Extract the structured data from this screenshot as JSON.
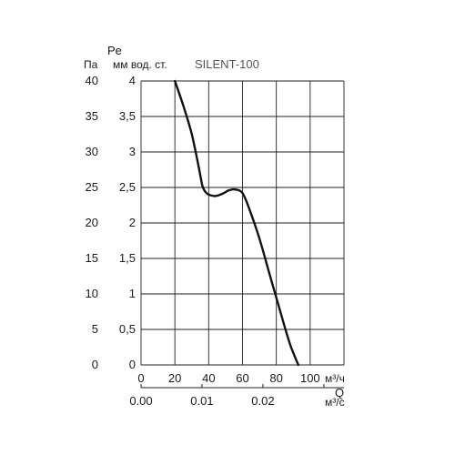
{
  "chart_data": {
    "type": "line",
    "title": "SILENT-100",
    "y_symbol": "Pe",
    "y_unit_pa": "Па",
    "y_unit_mm": "мм вод. ст.",
    "x_symbol": "Q",
    "x_unit_m3h": "м³/ч",
    "x_unit_m3s": "м³/с",
    "x_lim_m3h": [
      0,
      120
    ],
    "x_lim_m3s": [
      0.0,
      0.0333
    ],
    "y_lim_pa": [
      0,
      40
    ],
    "y_lim_mm": [
      0,
      4
    ],
    "grid": true,
    "x_ticks_m3h": [
      "0",
      "20",
      "40",
      "60",
      "80",
      "100"
    ],
    "x_ticks_m3s": [
      "0.00",
      "0.01",
      "0.02"
    ],
    "y_ticks_pa": [
      "0",
      "5",
      "10",
      "15",
      "20",
      "25",
      "30",
      "35",
      "40"
    ],
    "y_ticks_mm": [
      "0",
      "0,5",
      "1",
      "1,5",
      "2",
      "2,5",
      "3",
      "3,5",
      "4"
    ],
    "series": [
      {
        "color": "#111111",
        "x": [
          20,
          25,
          30,
          34,
          36,
          37,
          38,
          40,
          44,
          48,
          52,
          56,
          60,
          64,
          70,
          76,
          82,
          88,
          93
        ],
        "y": [
          40,
          36.5,
          32.5,
          28,
          25.5,
          24.8,
          24.4,
          24.0,
          23.8,
          24.1,
          24.6,
          24.7,
          24.2,
          22.0,
          17.8,
          12.8,
          7.8,
          3.0,
          0
        ]
      }
    ]
  }
}
